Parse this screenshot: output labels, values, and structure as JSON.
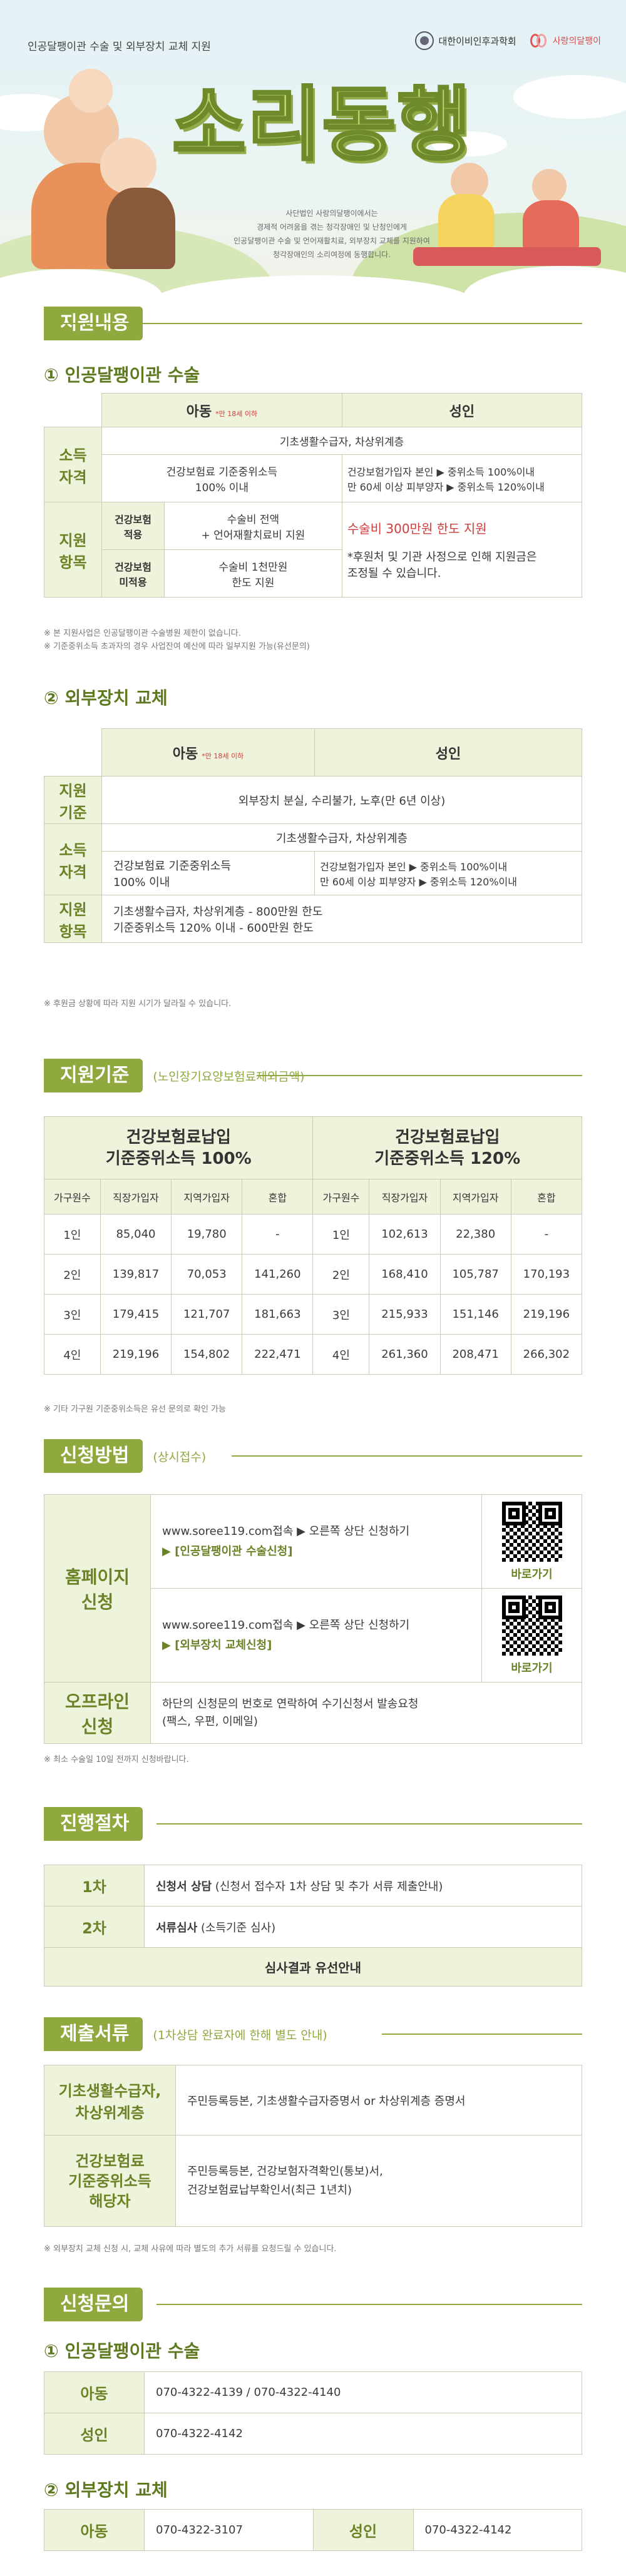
{
  "header": {
    "top_title": "인공달팽이관 수술 및 외부장치 교체 지원",
    "logo1": "대한이비인후과학회",
    "logo2": "사랑의달팽이",
    "main_title": "소리동행",
    "desc_lines": [
      "사단법인 사랑의달팽이에서는",
      "경제적 어려움을 겪는 청각장애인 및 난청인에게",
      "인공달팽이관 수술 및 언어재활치료, 외부장치 교체를 지원하여",
      "청각장애인의 소리여정에 동행합니다."
    ]
  },
  "support": {
    "title": "지원내용",
    "sub1": "① 인공달팽이관 수술",
    "t1": {
      "child": "아동",
      "child_note": "*만 18세 이하",
      "adult": "성인",
      "income_label": "소득\n자격",
      "income_common": "기초생활수급자, 차상위계층",
      "income_child": "건강보험료 기준중위소득\n100% 이내",
      "income_adult": "건강보험가입자 본인 ▶ 중위소득 100%이내\n만 60세 이상 피부양자 ▶ 중위소득 120%이내",
      "item_label": "지원\n항목",
      "ins_yes": "건강보험\n적용",
      "ins_yes_val": "수술비 전액\n+ 언어재활치료비 지원",
      "ins_no": "건강보험\n미적용",
      "ins_no_val": "수술비 1천만원\n한도 지원",
      "adult_item_red": "수술비 300만원 한도 지원",
      "adult_item_note": "*후원처 및 기관 사정으로 인해 지원금은\n조정될 수 있습니다."
    },
    "note1": "※ 본 지원사업은 인공달팽이관 수술병원 제한이 없습니다.\n※ 기준중위소득 초과자의 경우 사업잔여 예산에 따라 일부지원 가능(유선문의)",
    "sub2": "② 외부장치 교체",
    "t2": {
      "child": "아동",
      "child_note": "*만 18세 이하",
      "adult": "성인",
      "crit_label": "지원\n기준",
      "crit_val": "외부장치 분실, 수리불가, 노후(만 6년 이상)",
      "income_label": "소득\n자격",
      "income_common": "기초생활수급자, 차상위계층",
      "income_child": "건강보험료 기준중위소득\n100% 이내",
      "income_adult": "건강보험가입자 본인 ▶ 중위소득 100%이내\n만 60세 이상 피부양자 ▶ 중위소득 120%이내",
      "item_label": "지원\n항목",
      "item_val": "기초생활수급자, 차상위계층 - 800만원 한도\n기준중위소득 120% 이내 - 600만원 한도"
    },
    "note2": "※ 후원금 상황에 따라 지원 시기가 달라질 수 있습니다."
  },
  "criteria": {
    "title": "지원기준",
    "sub": "(노인장기요양보험료제외금액)",
    "left_head": "건강보험료납입\n기준중위소득 100%",
    "right_head": "건강보험료납입\n기준중위소득 120%",
    "cols": [
      "가구원수",
      "직장가입자",
      "지역가입자",
      "혼합"
    ],
    "rows_left": [
      [
        "1인",
        "85,040",
        "19,780",
        "-"
      ],
      [
        "2인",
        "139,817",
        "70,053",
        "141,260"
      ],
      [
        "3인",
        "179,415",
        "121,707",
        "181,663"
      ],
      [
        "4인",
        "219,196",
        "154,802",
        "222,471"
      ]
    ],
    "rows_right": [
      [
        "1인",
        "102,613",
        "22,380",
        "-"
      ],
      [
        "2인",
        "168,410",
        "105,787",
        "170,193"
      ],
      [
        "3인",
        "215,933",
        "151,146",
        "219,196"
      ],
      [
        "4인",
        "261,360",
        "208,471",
        "266,302"
      ]
    ],
    "note": "※ 기타 가구원 기준중위소득은 유선 문의로 확인 가능"
  },
  "apply": {
    "title": "신청방법",
    "sub": "(상시접수)",
    "home_label": "홈페이지\n신청",
    "home1_line": "www.soree119.com접속 ▶ 오른쪽 상단 신청하기",
    "home1_link": "▶ [인공달팽이관 수술신청]",
    "home2_line": "www.soree119.com접속 ▶ 오른쪽 상단 신청하기",
    "home2_link": "▶ [외부장치 교체신청]",
    "goto": "바로가기",
    "offline_label": "오프라인\n신청",
    "offline_val": "하단의 신청문의 번호로 연락하여 수기신청서 발송요청\n(팩스, 우편, 이메일)",
    "note": "※ 최소 수술일 10일 전까지 신청바랍니다."
  },
  "process": {
    "title": "진행절차",
    "step1": "1차",
    "step1_bold": "신청서 상담",
    "step1_rest": " (신청서 접수자 1차 상담 및 추가 서류 제출안내)",
    "step2": "2차",
    "step2_bold": "서류심사",
    "step2_rest": " (소득기준 심사)",
    "result": "심사결과 유선안내"
  },
  "docs": {
    "title": "제출서류",
    "sub": "(1차상담 완료자에 한해 별도 안내)",
    "r1_label": "기초생활수급자,\n차상위계층",
    "r1_val": "주민등록등본, 기초생활수급자증명서 or 차상위계층 증명서",
    "r2_label": "건강보험료\n기준중위소득\n해당자",
    "r2_val": "주민등록등본, 건강보험자격확인(통보)서,\n건강보험료납부확인서(최근 1년치)",
    "note": "※ 외부장치 교체 신청 시, 교체 사유에 따라 별도의 추가 서류를 요청드릴 수 있습니다."
  },
  "contact": {
    "title": "신청문의",
    "sub1": "① 인공달팽이관 수술",
    "child": "아동",
    "child_phone": "070-4322-4139 / 070-4322-4140",
    "adult": "성인",
    "adult_phone": "070-4322-4142",
    "sub2": "② 외부장치 교체",
    "child2_phone": "070-4322-3107",
    "adult2_phone": "070-4322-4142"
  }
}
